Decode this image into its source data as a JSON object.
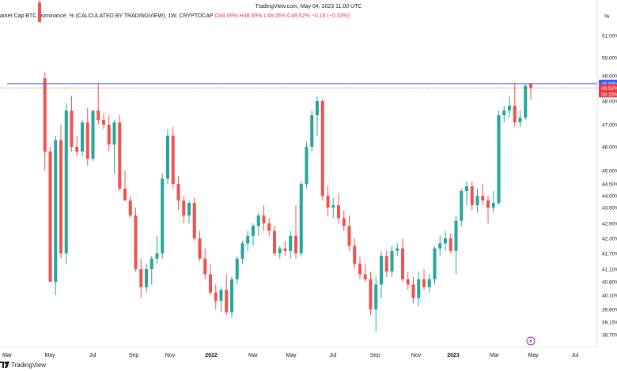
{
  "top_caption": "TradingView.com, May 04, 2023 11:00 UTC",
  "legend": {
    "title": "arket Cap BTC Dominance, % (CALCULATED BY TRADINGVIEW), 1W, CRYPTOCAP",
    "open": "O48.69%",
    "high": "H48.69%",
    "low": "L48.05%",
    "close": "C48.52%",
    "change": "−0.16 (−0.33%)"
  },
  "axis_unit": "%",
  "footer_brand": "TradingView",
  "price_tags": {
    "high_line": "48.69%",
    "last_price": "48.52%",
    "countdown": "3d 15h"
  },
  "colors": {
    "up": "#26a69a",
    "down": "#ef5350",
    "high_line": "#2962ff",
    "price_line": "#f23645"
  },
  "chart_data": {
    "type": "candlestick",
    "title": "",
    "scale": "log",
    "ylim": [
      38.5,
      52.5
    ],
    "x_tick_labels": [
      "Mar",
      "May",
      "Jul",
      "Sep",
      "Nov",
      "2022",
      "Mar",
      "May",
      "Jul",
      "Sep",
      "Nov",
      "2023",
      "Mar",
      "May",
      "Jul"
    ],
    "y_tick_labels": [
      "51.00%",
      "50.00%",
      "49.00%",
      "48.00%",
      "47.00%",
      "46.00%",
      "45.00%",
      "44.50%",
      "44.00%",
      "43.50%",
      "42.90%",
      "42.30%",
      "41.70%",
      "41.10%",
      "40.60%",
      "40.10%",
      "39.60%",
      "39.15%",
      "38.70%"
    ],
    "high_line_value": 48.69,
    "last_price": 48.52,
    "candles": [
      {
        "o": 52.5,
        "h": 52.6,
        "l": 51.6,
        "c": 51.6
      },
      {
        "o": 48.9,
        "h": 49.2,
        "l": 45.0,
        "c": 45.8
      },
      {
        "o": 45.8,
        "h": 46.0,
        "l": 40.6,
        "c": 40.6
      },
      {
        "o": 40.6,
        "h": 46.5,
        "l": 40.1,
        "c": 46.3
      },
      {
        "o": 46.3,
        "h": 47.0,
        "l": 41.5,
        "c": 41.7
      },
      {
        "o": 41.7,
        "h": 47.9,
        "l": 41.3,
        "c": 47.6
      },
      {
        "o": 47.6,
        "h": 48.2,
        "l": 45.8,
        "c": 46.0
      },
      {
        "o": 46.0,
        "h": 46.5,
        "l": 45.6,
        "c": 45.8
      },
      {
        "o": 45.8,
        "h": 47.2,
        "l": 45.6,
        "c": 47.1
      },
      {
        "o": 47.1,
        "h": 47.7,
        "l": 45.2,
        "c": 45.5
      },
      {
        "o": 45.5,
        "h": 47.6,
        "l": 45.4,
        "c": 47.6
      },
      {
        "o": 47.6,
        "h": 48.7,
        "l": 47.0,
        "c": 47.2
      },
      {
        "o": 47.2,
        "h": 47.5,
        "l": 46.8,
        "c": 47.0
      },
      {
        "o": 47.0,
        "h": 47.4,
        "l": 45.8,
        "c": 46.1
      },
      {
        "o": 46.1,
        "h": 47.2,
        "l": 44.9,
        "c": 47.1
      },
      {
        "o": 47.1,
        "h": 47.4,
        "l": 44.2,
        "c": 44.3
      },
      {
        "o": 44.3,
        "h": 45.0,
        "l": 43.8,
        "c": 43.8
      },
      {
        "o": 43.8,
        "h": 44.0,
        "l": 43.1,
        "c": 43.2
      },
      {
        "o": 43.2,
        "h": 43.5,
        "l": 41.0,
        "c": 41.1
      },
      {
        "o": 41.1,
        "h": 41.5,
        "l": 40.0,
        "c": 40.4
      },
      {
        "o": 40.4,
        "h": 41.3,
        "l": 40.2,
        "c": 41.1
      },
      {
        "o": 41.1,
        "h": 41.6,
        "l": 40.5,
        "c": 41.5
      },
      {
        "o": 41.5,
        "h": 42.4,
        "l": 41.3,
        "c": 41.7
      },
      {
        "o": 41.7,
        "h": 44.9,
        "l": 41.5,
        "c": 44.7
      },
      {
        "o": 44.7,
        "h": 46.8,
        "l": 44.5,
        "c": 46.5
      },
      {
        "o": 46.5,
        "h": 46.9,
        "l": 44.3,
        "c": 44.5
      },
      {
        "o": 44.5,
        "h": 44.8,
        "l": 43.4,
        "c": 43.8
      },
      {
        "o": 43.8,
        "h": 44.0,
        "l": 42.9,
        "c": 43.2
      },
      {
        "o": 43.2,
        "h": 43.8,
        "l": 42.9,
        "c": 43.7
      },
      {
        "o": 43.7,
        "h": 43.9,
        "l": 42.2,
        "c": 42.3
      },
      {
        "o": 42.3,
        "h": 42.6,
        "l": 41.4,
        "c": 41.5
      },
      {
        "o": 41.5,
        "h": 41.9,
        "l": 40.7,
        "c": 40.9
      },
      {
        "o": 40.9,
        "h": 41.3,
        "l": 40.1,
        "c": 40.2
      },
      {
        "o": 40.2,
        "h": 40.5,
        "l": 39.6,
        "c": 39.9
      },
      {
        "o": 39.9,
        "h": 40.4,
        "l": 39.5,
        "c": 40.3
      },
      {
        "o": 40.3,
        "h": 40.9,
        "l": 39.4,
        "c": 39.5
      },
      {
        "o": 39.5,
        "h": 40.8,
        "l": 39.3,
        "c": 40.7
      },
      {
        "o": 40.7,
        "h": 41.6,
        "l": 40.5,
        "c": 41.5
      },
      {
        "o": 41.5,
        "h": 42.2,
        "l": 41.3,
        "c": 42.1
      },
      {
        "o": 42.1,
        "h": 42.6,
        "l": 41.8,
        "c": 42.4
      },
      {
        "o": 42.4,
        "h": 42.9,
        "l": 42.0,
        "c": 42.8
      },
      {
        "o": 42.8,
        "h": 43.3,
        "l": 42.4,
        "c": 43.2
      },
      {
        "o": 43.2,
        "h": 43.6,
        "l": 42.6,
        "c": 42.9
      },
      {
        "o": 42.9,
        "h": 43.1,
        "l": 42.4,
        "c": 42.6
      },
      {
        "o": 42.6,
        "h": 42.8,
        "l": 41.6,
        "c": 41.7
      },
      {
        "o": 41.7,
        "h": 42.0,
        "l": 41.5,
        "c": 41.9
      },
      {
        "o": 41.9,
        "h": 42.2,
        "l": 41.6,
        "c": 41.8
      },
      {
        "o": 41.8,
        "h": 42.6,
        "l": 41.5,
        "c": 42.4
      },
      {
        "o": 42.4,
        "h": 43.6,
        "l": 41.5,
        "c": 41.7
      },
      {
        "o": 41.7,
        "h": 44.6,
        "l": 41.6,
        "c": 44.5
      },
      {
        "o": 44.5,
        "h": 46.2,
        "l": 44.3,
        "c": 46.0
      },
      {
        "o": 46.0,
        "h": 47.6,
        "l": 45.8,
        "c": 47.4
      },
      {
        "o": 47.4,
        "h": 48.2,
        "l": 46.5,
        "c": 48.0
      },
      {
        "o": 48.0,
        "h": 48.1,
        "l": 43.8,
        "c": 44.0
      },
      {
        "o": 44.0,
        "h": 44.4,
        "l": 43.2,
        "c": 43.5
      },
      {
        "o": 43.5,
        "h": 43.9,
        "l": 43.1,
        "c": 43.6
      },
      {
        "o": 43.6,
        "h": 44.1,
        "l": 42.9,
        "c": 43.1
      },
      {
        "o": 43.1,
        "h": 43.4,
        "l": 42.6,
        "c": 42.8
      },
      {
        "o": 42.8,
        "h": 43.2,
        "l": 41.8,
        "c": 42.0
      },
      {
        "o": 42.0,
        "h": 42.3,
        "l": 41.1,
        "c": 41.3
      },
      {
        "o": 41.3,
        "h": 41.6,
        "l": 40.7,
        "c": 40.9
      },
      {
        "o": 40.9,
        "h": 41.3,
        "l": 40.6,
        "c": 40.7
      },
      {
        "o": 40.7,
        "h": 41.0,
        "l": 39.4,
        "c": 39.6
      },
      {
        "o": 39.6,
        "h": 40.8,
        "l": 38.8,
        "c": 40.5
      },
      {
        "o": 40.5,
        "h": 41.8,
        "l": 40.0,
        "c": 41.6
      },
      {
        "o": 41.6,
        "h": 41.8,
        "l": 40.8,
        "c": 41.0
      },
      {
        "o": 41.0,
        "h": 42.0,
        "l": 40.8,
        "c": 41.8
      },
      {
        "o": 41.8,
        "h": 42.1,
        "l": 41.6,
        "c": 41.9
      },
      {
        "o": 41.9,
        "h": 42.3,
        "l": 40.6,
        "c": 40.7
      },
      {
        "o": 40.7,
        "h": 41.0,
        "l": 40.3,
        "c": 40.5
      },
      {
        "o": 40.5,
        "h": 40.8,
        "l": 39.8,
        "c": 40.0
      },
      {
        "o": 40.0,
        "h": 41.0,
        "l": 39.7,
        "c": 40.7
      },
      {
        "o": 40.7,
        "h": 41.1,
        "l": 40.3,
        "c": 40.4
      },
      {
        "o": 40.4,
        "h": 40.9,
        "l": 40.2,
        "c": 40.7
      },
      {
        "o": 40.7,
        "h": 42.0,
        "l": 40.5,
        "c": 41.9
      },
      {
        "o": 41.9,
        "h": 42.4,
        "l": 41.6,
        "c": 42.1
      },
      {
        "o": 42.1,
        "h": 42.6,
        "l": 41.8,
        "c": 42.3
      },
      {
        "o": 42.3,
        "h": 42.5,
        "l": 41.7,
        "c": 41.8
      },
      {
        "o": 41.8,
        "h": 43.2,
        "l": 40.9,
        "c": 43.0
      },
      {
        "o": 43.0,
        "h": 44.3,
        "l": 42.8,
        "c": 44.2
      },
      {
        "o": 44.2,
        "h": 44.6,
        "l": 43.6,
        "c": 44.4
      },
      {
        "o": 44.4,
        "h": 44.6,
        "l": 43.4,
        "c": 43.6
      },
      {
        "o": 43.6,
        "h": 44.3,
        "l": 43.3,
        "c": 44.0
      },
      {
        "o": 44.0,
        "h": 44.5,
        "l": 43.6,
        "c": 43.8
      },
      {
        "o": 43.8,
        "h": 44.0,
        "l": 42.9,
        "c": 43.5
      },
      {
        "o": 43.5,
        "h": 44.2,
        "l": 43.3,
        "c": 43.7
      },
      {
        "o": 43.7,
        "h": 47.6,
        "l": 43.6,
        "c": 47.4
      },
      {
        "o": 47.4,
        "h": 47.8,
        "l": 47.1,
        "c": 47.6
      },
      {
        "o": 47.6,
        "h": 48.2,
        "l": 47.3,
        "c": 47.8
      },
      {
        "o": 47.8,
        "h": 48.7,
        "l": 46.9,
        "c": 47.1
      },
      {
        "o": 47.1,
        "h": 47.6,
        "l": 46.9,
        "c": 47.3
      },
      {
        "o": 47.3,
        "h": 48.7,
        "l": 47.2,
        "c": 48.6
      },
      {
        "o": 48.69,
        "h": 48.69,
        "l": 48.05,
        "c": 48.52
      }
    ]
  }
}
